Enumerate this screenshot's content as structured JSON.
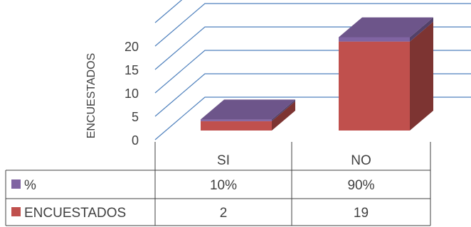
{
  "chart_data": {
    "type": "bar",
    "title": "",
    "xlabel": "",
    "ylabel": "ENCUESTADOS",
    "categories": [
      "SI",
      "NO"
    ],
    "yticks": [
      "0",
      "5",
      "10",
      "15",
      "20"
    ],
    "ylim": [
      0,
      25
    ],
    "stacked": true,
    "three_d": true,
    "legend_placement": "data-table",
    "series": [
      {
        "name": "ENCUESTADOS",
        "values": [
          2,
          19
        ],
        "color": "#C0504D",
        "labels": [
          "2",
          "19"
        ]
      },
      {
        "name": "%",
        "values": [
          0.1,
          0.9
        ],
        "color": "#8064A2",
        "labels": [
          "10%",
          "90%"
        ]
      }
    ],
    "grid": true,
    "grid_color": "#4F81BD"
  }
}
